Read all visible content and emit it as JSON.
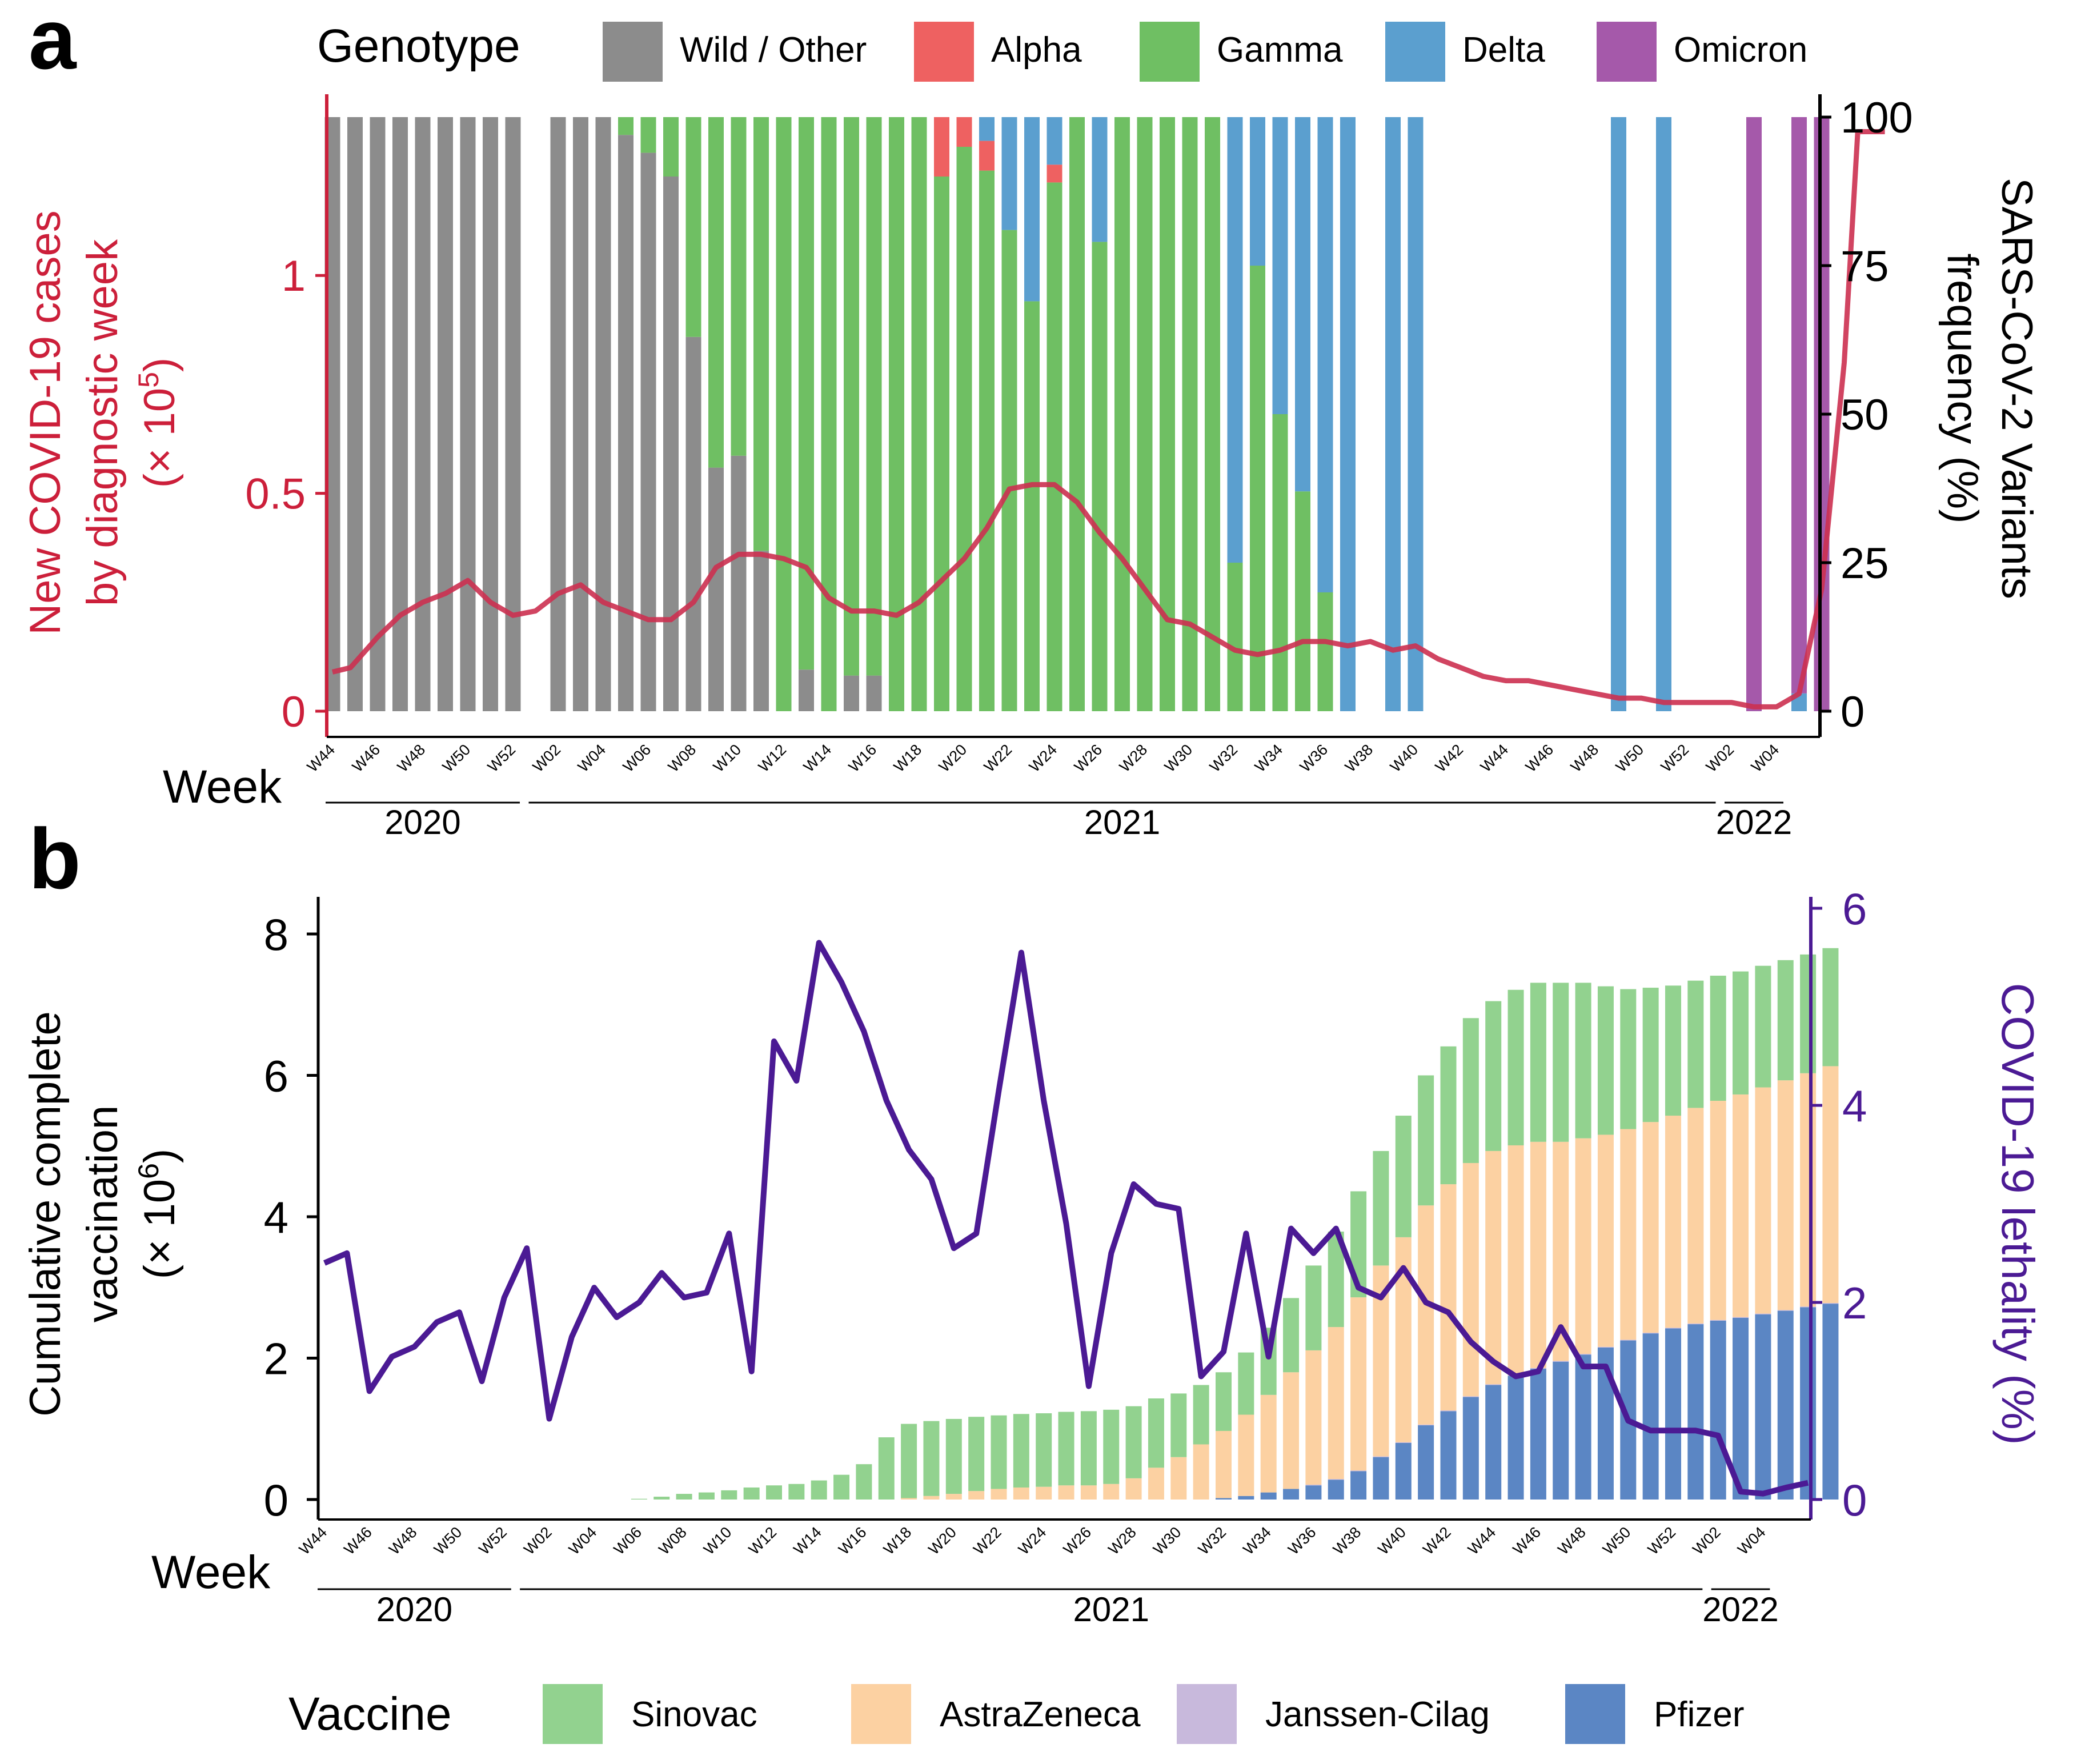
{
  "chart_data": [
    {
      "panel": "a",
      "type": "bar",
      "title": "",
      "xlabel": "Week",
      "ylabel_left": "New COVID-19 cases by diagnostic week (× 10^5)",
      "ylabel_left_lines": [
        "New COVID-19 cases",
        "by diagnostic week",
        "(× 10"
      ],
      "ylabel_left_sup": "5",
      "ylabel_left_close": ")",
      "ylabel_right_lines": [
        "SARS-CoV-2 Variants",
        "frequency (%)"
      ],
      "ylim_left": [
        0,
        1.37
      ],
      "ylim_right": [
        0,
        100
      ],
      "yticks_left": [
        {
          "v": 0,
          "label": "0"
        },
        {
          "v": 0.5,
          "label": "0.5"
        },
        {
          "v": 1,
          "label": "1"
        }
      ],
      "yticks_right": [
        {
          "v": 0,
          "label": "0"
        },
        {
          "v": 25,
          "label": "25"
        },
        {
          "v": 50,
          "label": "50"
        },
        {
          "v": 75,
          "label": "75"
        },
        {
          "v": 100,
          "label": "100"
        }
      ],
      "week_tick_labels": [
        "W44",
        "W46",
        "W48",
        "W50",
        "W52",
        "W02",
        "W04",
        "W06",
        "W08",
        "W10",
        "W12",
        "W14",
        "W16",
        "W18",
        "W20",
        "W22",
        "W24",
        "W26",
        "W28",
        "W30",
        "W32",
        "W34",
        "W36",
        "W38",
        "W40",
        "W42",
        "W44",
        "W46",
        "W48",
        "W50",
        "W52",
        "W02",
        "W04"
      ],
      "week_tick_index": [
        0,
        2,
        4,
        6,
        8,
        10,
        12,
        14,
        16,
        18,
        20,
        22,
        24,
        26,
        28,
        30,
        32,
        34,
        36,
        38,
        40,
        42,
        44,
        46,
        48,
        50,
        52,
        54,
        56,
        58,
        60,
        62,
        64
      ],
      "year_groups": [
        {
          "label": "2020",
          "start": 0,
          "end": 8
        },
        {
          "label": "2021",
          "start": 9,
          "end": 61
        },
        {
          "label": "2022",
          "start": 62,
          "end": 64
        }
      ],
      "legend_title": "Genotype",
      "legend": [
        {
          "name": "Wild / Other",
          "color": "#8c8c8c"
        },
        {
          "name": "Alpha",
          "color": "#ee6161"
        },
        {
          "name": "Gamma",
          "color": "#6fbf63"
        },
        {
          "name": "Delta",
          "color": "#5b9fcf"
        },
        {
          "name": "Omicron",
          "color": "#a559aa"
        }
      ],
      "variant_bars": [
        {
          "i": 0,
          "wild": 100
        },
        {
          "i": 1,
          "wild": 100
        },
        {
          "i": 2,
          "wild": 100
        },
        {
          "i": 3,
          "wild": 100
        },
        {
          "i": 4,
          "wild": 100
        },
        {
          "i": 5,
          "wild": 100
        },
        {
          "i": 6,
          "wild": 100
        },
        {
          "i": 7,
          "wild": 100
        },
        {
          "i": 8,
          "wild": 100
        },
        {
          "i": 10,
          "wild": 100
        },
        {
          "i": 11,
          "wild": 100
        },
        {
          "i": 12,
          "wild": 100
        },
        {
          "i": 13,
          "wild": 97,
          "gamma": 3
        },
        {
          "i": 14,
          "wild": 94,
          "gamma": 6
        },
        {
          "i": 15,
          "wild": 90,
          "gamma": 10
        },
        {
          "i": 16,
          "wild": 63,
          "gamma": 37
        },
        {
          "i": 17,
          "wild": 41,
          "gamma": 59
        },
        {
          "i": 18,
          "wild": 43,
          "gamma": 57
        },
        {
          "i": 19,
          "wild": 27,
          "gamma": 73
        },
        {
          "i": 20,
          "gamma": 100
        },
        {
          "i": 21,
          "wild": 7,
          "gamma": 93
        },
        {
          "i": 22,
          "gamma": 100
        },
        {
          "i": 23,
          "wild": 6,
          "gamma": 94
        },
        {
          "i": 24,
          "wild": 6,
          "gamma": 94
        },
        {
          "i": 25,
          "gamma": 100
        },
        {
          "i": 26,
          "gamma": 100
        },
        {
          "i": 27,
          "gamma": 90,
          "alpha": 10
        },
        {
          "i": 28,
          "gamma": 95,
          "alpha": 5
        },
        {
          "i": 29,
          "gamma": 91,
          "alpha": 5,
          "delta": 4
        },
        {
          "i": 30,
          "gamma": 81,
          "delta": 19
        },
        {
          "i": 31,
          "gamma": 69,
          "delta": 31
        },
        {
          "i": 32,
          "gamma": 89,
          "alpha": 3,
          "delta": 8
        },
        {
          "i": 33,
          "gamma": 100
        },
        {
          "i": 34,
          "gamma": 79,
          "delta": 21
        },
        {
          "i": 35,
          "gamma": 100
        },
        {
          "i": 36,
          "gamma": 100
        },
        {
          "i": 37,
          "gamma": 100
        },
        {
          "i": 38,
          "gamma": 100
        },
        {
          "i": 39,
          "gamma": 100
        },
        {
          "i": 40,
          "gamma": 25,
          "delta": 75
        },
        {
          "i": 41,
          "gamma": 75,
          "delta": 25
        },
        {
          "i": 42,
          "gamma": 50,
          "delta": 50
        },
        {
          "i": 43,
          "gamma": 37,
          "delta": 63
        },
        {
          "i": 44,
          "gamma": 20,
          "delta": 80
        },
        {
          "i": 45,
          "delta": 100
        },
        {
          "i": 47,
          "delta": 100
        },
        {
          "i": 48,
          "delta": 100
        },
        {
          "i": 57,
          "delta": 100
        },
        {
          "i": 59,
          "delta": 100
        },
        {
          "i": 63,
          "omicron": 100
        },
        {
          "i": 65,
          "omicron": 97,
          "delta": 3
        },
        {
          "i": 66,
          "omicron": 100
        }
      ],
      "cases_line": {
        "name": "New COVID-19 cases",
        "color": "#cc3050",
        "x": [
          0,
          0.8,
          2,
          3,
          4,
          5,
          6,
          7,
          8,
          9,
          10,
          11,
          12,
          13,
          14,
          15,
          16,
          17,
          18,
          19,
          20,
          21,
          22,
          23,
          24,
          25,
          26,
          27,
          28,
          29,
          30,
          31,
          32,
          33,
          34,
          35,
          36,
          37,
          38,
          39,
          40,
          41,
          42,
          43,
          44,
          45,
          46,
          47,
          48,
          49,
          50,
          51,
          52,
          53,
          54,
          55,
          56,
          57,
          58,
          59,
          60,
          61,
          62,
          63,
          64,
          65,
          66,
          67,
          67.6,
          68.8
        ],
        "y": [
          0.09,
          0.1,
          0.17,
          0.22,
          0.25,
          0.27,
          0.3,
          0.25,
          0.22,
          0.23,
          0.27,
          0.29,
          0.25,
          0.23,
          0.21,
          0.21,
          0.25,
          0.33,
          0.36,
          0.36,
          0.35,
          0.33,
          0.26,
          0.23,
          0.23,
          0.22,
          0.25,
          0.3,
          0.35,
          0.42,
          0.51,
          0.52,
          0.52,
          0.48,
          0.41,
          0.35,
          0.28,
          0.21,
          0.2,
          0.17,
          0.14,
          0.13,
          0.14,
          0.16,
          0.16,
          0.15,
          0.16,
          0.14,
          0.15,
          0.12,
          0.1,
          0.08,
          0.07,
          0.07,
          0.06,
          0.05,
          0.04,
          0.03,
          0.03,
          0.02,
          0.02,
          0.02,
          0.02,
          0.01,
          0.01,
          0.04,
          0.28,
          0.8,
          1.33,
          1.33
        ]
      }
    },
    {
      "panel": "b",
      "type": "bar",
      "title": "",
      "xlabel": "Week",
      "ylabel_left_lines": [
        "Cumulative complete",
        "vaccination",
        "(× 10"
      ],
      "ylabel_left_sup": "6",
      "ylabel_left_close": ")",
      "ylabel_right": "COVID-19 lethality (%)",
      "ylim_left": [
        0,
        8.5
      ],
      "ylim_right": [
        0,
        6.1
      ],
      "yticks_left": [
        {
          "v": 0,
          "label": "0"
        },
        {
          "v": 2,
          "label": "2"
        },
        {
          "v": 4,
          "label": "4"
        },
        {
          "v": 6,
          "label": "6"
        },
        {
          "v": 8,
          "label": "8"
        }
      ],
      "yticks_right": [
        {
          "v": 0,
          "label": "0"
        },
        {
          "v": 2,
          "label": "2"
        },
        {
          "v": 4,
          "label": "4"
        },
        {
          "v": 6,
          "label": "6"
        }
      ],
      "week_tick_labels": [
        "W44",
        "W46",
        "W48",
        "W50",
        "W52",
        "W02",
        "W04",
        "W06",
        "W08",
        "W10",
        "W12",
        "W14",
        "W16",
        "W18",
        "W20",
        "W22",
        "W24",
        "W26",
        "W28",
        "W30",
        "W32",
        "W34",
        "W36",
        "W38",
        "W40",
        "W42",
        "W44",
        "W46",
        "W48",
        "W50",
        "W52",
        "W02",
        "W04"
      ],
      "week_tick_index": [
        0,
        2,
        4,
        6,
        8,
        10,
        12,
        14,
        16,
        18,
        20,
        22,
        24,
        26,
        28,
        30,
        32,
        34,
        36,
        38,
        40,
        42,
        44,
        46,
        48,
        50,
        52,
        54,
        56,
        58,
        60,
        62,
        64
      ],
      "year_groups": [
        {
          "label": "2020",
          "start": 0,
          "end": 8
        },
        {
          "label": "2021",
          "start": 9,
          "end": 61
        },
        {
          "label": "2022",
          "start": 62,
          "end": 64
        }
      ],
      "legend_title": "Vaccine",
      "legend": [
        {
          "name": "Sinovac",
          "color": "#92d28f"
        },
        {
          "name": "AstraZeneca",
          "color": "#fcd1a2"
        },
        {
          "name": "Janssen-Cilag",
          "color": "#c8b9dc"
        },
        {
          "name": "Pfizer",
          "color": "#5b86c4"
        }
      ],
      "vaccination_bars": {
        "start_index": 14,
        "pfizer": [
          0,
          0,
          0,
          0,
          0,
          0,
          0,
          0,
          0,
          0,
          0,
          0,
          0,
          0,
          0,
          0,
          0,
          0,
          0,
          0,
          0,
          0,
          0,
          0,
          0,
          0,
          0.02,
          0.05,
          0.1,
          0.15,
          0.2,
          0.28,
          0.4,
          0.6,
          0.8,
          1.05,
          1.25,
          1.45,
          1.62,
          1.75,
          1.85,
          1.95,
          2.05,
          2.15,
          2.25,
          2.35,
          2.42,
          2.48,
          2.53,
          2.57,
          2.62,
          2.67,
          2.72,
          2.77
        ],
        "astrazeneca": [
          0,
          0,
          0,
          0,
          0,
          0,
          0,
          0,
          0,
          0,
          0,
          0,
          0.02,
          0.05,
          0.08,
          0.12,
          0.15,
          0.17,
          0.18,
          0.2,
          0.2,
          0.22,
          0.3,
          0.45,
          0.6,
          0.78,
          0.95,
          1.15,
          1.38,
          1.65,
          1.9,
          2.15,
          2.45,
          2.7,
          2.9,
          3.1,
          3.2,
          3.3,
          3.3,
          3.25,
          3.2,
          3.1,
          3.05,
          3,
          2.98,
          2.98,
          3,
          3.05,
          3.1,
          3.15,
          3.2,
          3.25,
          3.3,
          3.35
        ],
        "janssen": [
          0,
          0,
          0,
          0,
          0,
          0,
          0,
          0,
          0,
          0,
          0,
          0,
          0,
          0,
          0,
          0,
          0,
          0,
          0,
          0,
          0,
          0,
          0,
          0,
          0,
          0,
          0,
          0,
          0,
          0,
          0.01,
          0.01,
          0.01,
          0.01,
          0.01,
          0.01,
          0.01,
          0.01,
          0.01,
          0.01,
          0.01,
          0.01,
          0.01,
          0.01,
          0.01,
          0.01,
          0.01,
          0.01,
          0.01,
          0.01,
          0.01,
          0.01,
          0.01,
          0.01
        ],
        "sinovac": [
          0.01,
          0.04,
          0.08,
          0.1,
          0.13,
          0.17,
          0.2,
          0.22,
          0.27,
          0.35,
          0.5,
          0.88,
          1.05,
          1.06,
          1.06,
          1.05,
          1.04,
          1.04,
          1.04,
          1.04,
          1.05,
          1.05,
          1.02,
          0.98,
          0.9,
          0.84,
          0.83,
          0.88,
          0.95,
          1.05,
          1.2,
          1.35,
          1.5,
          1.62,
          1.72,
          1.84,
          1.95,
          2.05,
          2.12,
          2.2,
          2.25,
          2.25,
          2.2,
          2.1,
          1.98,
          1.9,
          1.84,
          1.8,
          1.77,
          1.74,
          1.72,
          1.7,
          1.68,
          1.67
        ]
      },
      "lethality_line": {
        "name": "COVID-19 lethality (%)",
        "color": "#4b1a94",
        "x": [
          0,
          1,
          2,
          3,
          4,
          5,
          6,
          7,
          8,
          9,
          10,
          11,
          12,
          13,
          14,
          15,
          16,
          17,
          18,
          19,
          20,
          21,
          22,
          23,
          24,
          25,
          26,
          27,
          28,
          29,
          30,
          31,
          32,
          33,
          34,
          35,
          36,
          37,
          38,
          39,
          40,
          41,
          42,
          43,
          44,
          45,
          46,
          47,
          48,
          49,
          50,
          51,
          52,
          53,
          54,
          55,
          56,
          57,
          58,
          59,
          60,
          61,
          62,
          63,
          64,
          65,
          66
        ],
        "y": [
          2.4,
          2.5,
          1.1,
          1.45,
          1.55,
          1.8,
          1.9,
          1.2,
          2.05,
          2.55,
          0.82,
          1.65,
          2.15,
          1.85,
          2.0,
          2.3,
          2.05,
          2.1,
          2.7,
          1.3,
          4.65,
          4.25,
          5.65,
          5.25,
          4.75,
          4.05,
          3.55,
          3.25,
          2.55,
          2.7,
          4.15,
          5.55,
          4.05,
          2.8,
          1.15,
          2.5,
          3.2,
          3.0,
          2.95,
          1.25,
          1.5,
          2.7,
          1.45,
          2.75,
          2.5,
          2.75,
          2.15,
          2.05,
          2.35,
          2.0,
          1.9,
          1.6,
          1.4,
          1.25,
          1.3,
          1.75,
          1.35,
          1.35,
          0.8,
          0.7,
          0.7,
          0.7,
          0.65,
          0.08,
          0.06,
          0.12,
          0.17
        ]
      }
    }
  ],
  "panel_labels": {
    "a": "a",
    "b": "b"
  }
}
